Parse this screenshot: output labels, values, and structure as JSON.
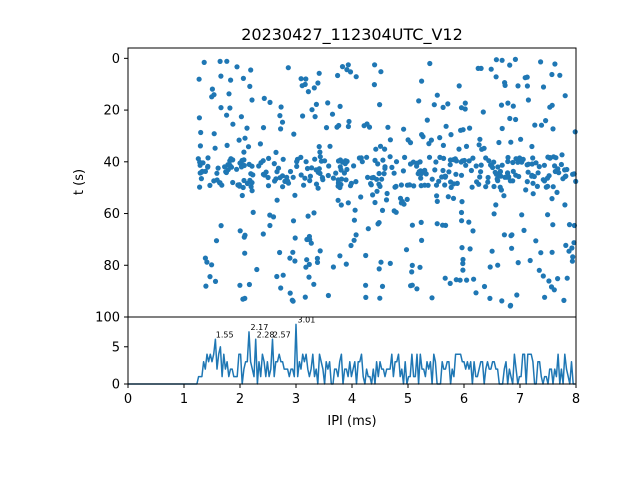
{
  "chart_data": [
    {
      "type": "scatter",
      "title": "20230427_112304UTC_V12",
      "xlabel": "",
      "ylabel": "t (s)",
      "xlim": [
        0,
        8
      ],
      "ylim": [
        100,
        -4
      ],
      "y_inverted": true,
      "yticks": [
        0,
        20,
        40,
        60,
        80,
        100
      ],
      "marker_color": "#1f77b4",
      "x_range_of_points": [
        1.25,
        8
      ],
      "y_range_of_points": [
        0,
        96
      ],
      "dense_band_t": [
        38,
        50
      ],
      "point_count_approx": 620
    },
    {
      "type": "line",
      "title": "",
      "xlabel": "IPI (ms)",
      "ylabel": "",
      "xlim": [
        0,
        8
      ],
      "ylim": [
        0,
        9
      ],
      "xticks": [
        0,
        1,
        2,
        3,
        4,
        5,
        6,
        7,
        8
      ],
      "yticks": [
        0,
        5
      ],
      "line_color": "#1f77b4",
      "peak_labels": [
        {
          "x": 1.55,
          "y": 6,
          "text": "1.55"
        },
        {
          "x": 2.17,
          "y": 7,
          "text": "2.17"
        },
        {
          "x": 2.28,
          "y": 6,
          "text": "2.28"
        },
        {
          "x": 2.57,
          "y": 6,
          "text": "2.57"
        },
        {
          "x": 3.01,
          "y": 8,
          "text": "3.01"
        }
      ]
    }
  ]
}
